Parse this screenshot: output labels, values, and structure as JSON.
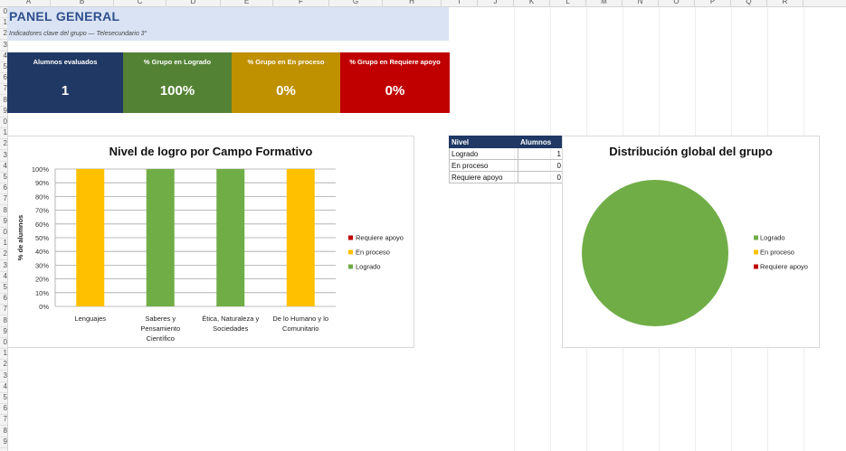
{
  "columns": [
    "A",
    "B",
    "C",
    "D",
    "E",
    "F",
    "G",
    "H",
    "I",
    "J",
    "K",
    "L",
    "M",
    "N",
    "O",
    "P",
    "Q",
    "R"
  ],
  "rows": [
    "0",
    "1",
    "2",
    "3",
    "4",
    "5",
    "6",
    "7",
    "8",
    "9",
    "0",
    "1",
    "2",
    "3",
    "4",
    "5",
    "6",
    "7",
    "8",
    "9",
    "0",
    "1",
    "2",
    "3",
    "4",
    "5",
    "6",
    "7",
    "8",
    "9",
    "0",
    "1",
    "2",
    "3",
    "4",
    "5",
    "6",
    "7",
    "8",
    "9"
  ],
  "header": {
    "title": "PANEL GENERAL",
    "subtitle": "Indicadores clave del grupo — Telesecundario 3°"
  },
  "kpis": [
    {
      "label": "Alumnos evaluados",
      "value": "1",
      "color": "#203864"
    },
    {
      "label": "% Grupo en Logrado",
      "value": "100%",
      "color": "#548235"
    },
    {
      "label": "% Grupo en En proceso",
      "value": "0%",
      "color": "#bf9000"
    },
    {
      "label": "% Grupo en Requiere apoyo",
      "value": "0%",
      "color": "#c00000"
    }
  ],
  "colors": {
    "logrado": "#70ad47",
    "en_proceso": "#ffc000",
    "requiere_apoyo": "#c00000",
    "table_header": "#1f3864"
  },
  "level_table": {
    "headers": [
      "Nivel",
      "Alumnos"
    ],
    "rows": [
      {
        "nivel": "Logrado",
        "alumnos": "1"
      },
      {
        "nivel": "En proceso",
        "alumnos": "0"
      },
      {
        "nivel": "Requiere apoyo",
        "alumnos": "0"
      }
    ]
  },
  "chart_data": [
    {
      "type": "bar",
      "title": "Nivel de logro por Campo Formativo",
      "ylabel": "% de alumnos",
      "ylim": [
        0,
        100
      ],
      "yticks": [
        "0%",
        "10%",
        "20%",
        "30%",
        "40%",
        "50%",
        "60%",
        "70%",
        "80%",
        "90%",
        "100%"
      ],
      "categories": [
        "Lenguajes",
        "Saberes y Pensamiento Científico",
        "Ética, Naturaleza y Sociedades",
        "De lo Humano y lo Comunitario"
      ],
      "category_lines": [
        [
          "Lenguajes"
        ],
        [
          "Saberes y",
          "Pensamiento",
          "Científico"
        ],
        [
          "Ética, Naturaleza y",
          "Sociedades"
        ],
        [
          "De lo Humano y lo",
          "Comunitario"
        ]
      ],
      "bar_colors": [
        "#ffc000",
        "#70ad47",
        "#70ad47",
        "#ffc000"
      ],
      "values": [
        100,
        100,
        100,
        100
      ],
      "legend": [
        {
          "name": "Requiere apoyo",
          "color": "#c00000"
        },
        {
          "name": "En proceso",
          "color": "#ffc000"
        },
        {
          "name": "Logrado",
          "color": "#70ad47"
        }
      ],
      "legend_position": "right",
      "grid": true
    },
    {
      "type": "pie",
      "title": "Distribución global del grupo",
      "labels": [
        "Logrado",
        "En proceso",
        "Requiere apoyo"
      ],
      "values": [
        1,
        0,
        0
      ],
      "colors": [
        "#70ad47",
        "#ffc000",
        "#c00000"
      ],
      "legend_position": "right"
    }
  ]
}
